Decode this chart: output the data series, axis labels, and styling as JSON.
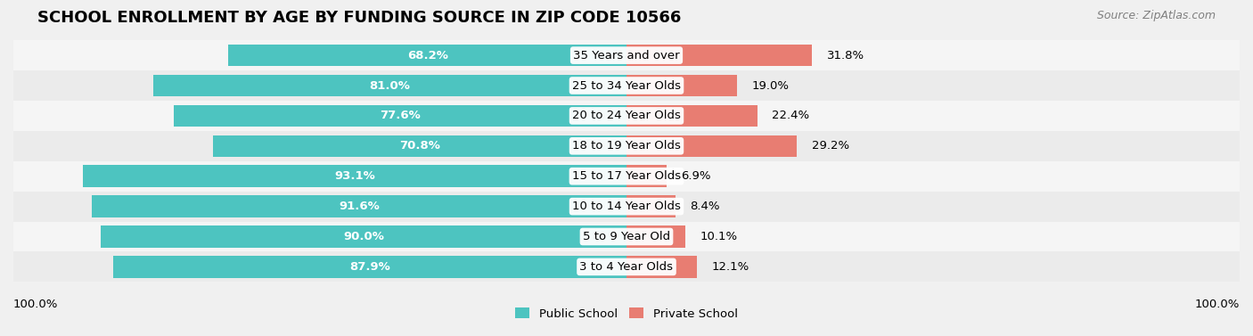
{
  "title": "SCHOOL ENROLLMENT BY AGE BY FUNDING SOURCE IN ZIP CODE 10566",
  "source_text": "Source: ZipAtlas.com",
  "categories": [
    "3 to 4 Year Olds",
    "5 to 9 Year Old",
    "10 to 14 Year Olds",
    "15 to 17 Year Olds",
    "18 to 19 Year Olds",
    "20 to 24 Year Olds",
    "25 to 34 Year Olds",
    "35 Years and over"
  ],
  "public_values": [
    87.9,
    90.0,
    91.6,
    93.1,
    70.8,
    77.6,
    81.0,
    68.2
  ],
  "private_values": [
    12.1,
    10.1,
    8.4,
    6.9,
    29.2,
    22.4,
    19.0,
    31.8
  ],
  "public_color": "#4DC4C0",
  "private_color": "#E87D72",
  "public_label": "Public School",
  "private_label": "Private School",
  "bg_color": "#f0f0f0",
  "bar_bg_color": "#ffffff",
  "row_bg_color": "#e8e8e8",
  "title_fontsize": 13,
  "label_fontsize": 9.5,
  "bar_value_fontsize": 9.5,
  "footer_fontsize": 9.5,
  "max_val": 100.0
}
